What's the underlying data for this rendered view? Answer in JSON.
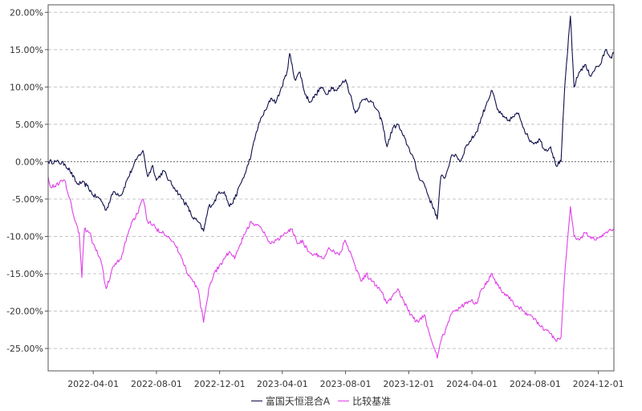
{
  "chart_data": {
    "type": "line",
    "title": "",
    "xlabel": "",
    "ylabel": "",
    "ylim": [
      -0.28,
      0.21
    ],
    "y_ticks": [
      "20.00%",
      "15.00%",
      "10.00%",
      "5.00%",
      "0.00%",
      "-5.00%",
      "-10.00%",
      "-15.00%",
      "-20.00%",
      "-25.00%"
    ],
    "y_tick_values": [
      0.2,
      0.15,
      0.1,
      0.05,
      0.0,
      -0.05,
      -0.1,
      -0.15,
      -0.2,
      -0.25
    ],
    "x_ticks": [
      "2022-04-01",
      "2022-08-01",
      "2022-12-01",
      "2023-04-01",
      "2023-08-01",
      "2023-12-01",
      "2024-04-01",
      "2024-08-01",
      "2024-12-01"
    ],
    "x_start": "2022-01-04",
    "x_end": "2024-12-31",
    "grid": true,
    "legend_position": "bottom",
    "series": [
      {
        "name": "富国天恒混合A",
        "color": "#0f0f4b",
        "points": [
          [
            "2022-01-04",
            0.0
          ],
          [
            "2022-01-20",
            0.0
          ],
          [
            "2022-02-05",
            -0.003
          ],
          [
            "2022-02-15",
            -0.012
          ],
          [
            "2022-03-01",
            -0.03
          ],
          [
            "2022-03-10",
            -0.028
          ],
          [
            "2022-03-20",
            -0.032
          ],
          [
            "2022-04-01",
            -0.045
          ],
          [
            "2022-04-15",
            -0.05
          ],
          [
            "2022-04-26",
            -0.065
          ],
          [
            "2022-05-10",
            -0.04
          ],
          [
            "2022-05-25",
            -0.045
          ],
          [
            "2022-06-05",
            -0.025
          ],
          [
            "2022-06-15",
            -0.01
          ],
          [
            "2022-06-25",
            0.005
          ],
          [
            "2022-07-06",
            0.015
          ],
          [
            "2022-07-15",
            -0.02
          ],
          [
            "2022-07-25",
            -0.005
          ],
          [
            "2022-08-01",
            -0.025
          ],
          [
            "2022-08-15",
            -0.012
          ],
          [
            "2022-08-25",
            -0.025
          ],
          [
            "2022-09-05",
            -0.035
          ],
          [
            "2022-09-20",
            -0.05
          ],
          [
            "2022-09-30",
            -0.06
          ],
          [
            "2022-10-10",
            -0.075
          ],
          [
            "2022-10-20",
            -0.08
          ],
          [
            "2022-10-31",
            -0.093
          ],
          [
            "2022-11-10",
            -0.06
          ],
          [
            "2022-11-20",
            -0.055
          ],
          [
            "2022-11-30",
            -0.04
          ],
          [
            "2022-12-10",
            -0.04
          ],
          [
            "2022-12-20",
            -0.06
          ],
          [
            "2022-12-30",
            -0.05
          ],
          [
            "2023-01-10",
            -0.03
          ],
          [
            "2023-01-20",
            -0.015
          ],
          [
            "2023-01-31",
            0.01
          ],
          [
            "2023-02-10",
            0.04
          ],
          [
            "2023-02-20",
            0.06
          ],
          [
            "2023-03-01",
            0.07
          ],
          [
            "2023-03-10",
            0.085
          ],
          [
            "2023-03-20",
            0.08
          ],
          [
            "2023-03-31",
            0.1
          ],
          [
            "2023-04-10",
            0.12
          ],
          [
            "2023-04-15",
            0.145
          ],
          [
            "2023-04-25",
            0.11
          ],
          [
            "2023-05-05",
            0.12
          ],
          [
            "2023-05-15",
            0.09
          ],
          [
            "2023-05-25",
            0.08
          ],
          [
            "2023-06-05",
            0.09
          ],
          [
            "2023-06-15",
            0.1
          ],
          [
            "2023-06-25",
            0.09
          ],
          [
            "2023-07-05",
            0.1
          ],
          [
            "2023-07-15",
            0.095
          ],
          [
            "2023-07-25",
            0.105
          ],
          [
            "2023-08-01",
            0.11
          ],
          [
            "2023-08-10",
            0.09
          ],
          [
            "2023-08-20",
            0.065
          ],
          [
            "2023-08-31",
            0.08
          ],
          [
            "2023-09-10",
            0.085
          ],
          [
            "2023-09-20",
            0.08
          ],
          [
            "2023-09-30",
            0.07
          ],
          [
            "2023-10-10",
            0.055
          ],
          [
            "2023-10-20",
            0.02
          ],
          [
            "2023-10-31",
            0.045
          ],
          [
            "2023-11-10",
            0.05
          ],
          [
            "2023-11-20",
            0.035
          ],
          [
            "2023-11-30",
            0.02
          ],
          [
            "2023-12-10",
            0.005
          ],
          [
            "2023-12-20",
            -0.02
          ],
          [
            "2023-12-31",
            -0.03
          ],
          [
            "2024-01-10",
            -0.05
          ],
          [
            "2024-01-20",
            -0.065
          ],
          [
            "2024-01-25",
            -0.077
          ],
          [
            "2024-02-01",
            -0.02
          ],
          [
            "2024-02-10",
            -0.02
          ],
          [
            "2024-02-20",
            0.005
          ],
          [
            "2024-02-29",
            0.01
          ],
          [
            "2024-03-10",
            0.0
          ],
          [
            "2024-03-20",
            0.02
          ],
          [
            "2024-03-31",
            0.03
          ],
          [
            "2024-04-10",
            0.04
          ],
          [
            "2024-04-20",
            0.06
          ],
          [
            "2024-04-30",
            0.08
          ],
          [
            "2024-05-10",
            0.095
          ],
          [
            "2024-05-20",
            0.07
          ],
          [
            "2024-05-31",
            0.06
          ],
          [
            "2024-06-10",
            0.055
          ],
          [
            "2024-06-20",
            0.06
          ],
          [
            "2024-06-30",
            0.065
          ],
          [
            "2024-07-10",
            0.045
          ],
          [
            "2024-07-20",
            0.03
          ],
          [
            "2024-07-31",
            0.025
          ],
          [
            "2024-08-10",
            0.03
          ],
          [
            "2024-08-20",
            0.015
          ],
          [
            "2024-08-31",
            0.02
          ],
          [
            "2024-09-10",
            -0.005
          ],
          [
            "2024-09-20",
            0.0
          ],
          [
            "2024-09-27",
            0.1
          ],
          [
            "2024-10-08",
            0.195
          ],
          [
            "2024-10-15",
            0.1
          ],
          [
            "2024-10-25",
            0.12
          ],
          [
            "2024-11-05",
            0.13
          ],
          [
            "2024-11-15",
            0.115
          ],
          [
            "2024-11-25",
            0.125
          ],
          [
            "2024-12-05",
            0.13
          ],
          [
            "2024-12-15",
            0.15
          ],
          [
            "2024-12-25",
            0.14
          ],
          [
            "2024-12-31",
            0.145
          ]
        ]
      },
      {
        "name": "比较基准",
        "color": "#e040e8",
        "points": [
          [
            "2022-01-04",
            -0.02
          ],
          [
            "2022-01-10",
            -0.035
          ],
          [
            "2022-01-20",
            -0.03
          ],
          [
            "2022-02-05",
            -0.025
          ],
          [
            "2022-02-15",
            -0.05
          ],
          [
            "2022-02-25",
            -0.08
          ],
          [
            "2022-03-05",
            -0.095
          ],
          [
            "2022-03-10",
            -0.155
          ],
          [
            "2022-03-15",
            -0.09
          ],
          [
            "2022-03-25",
            -0.095
          ],
          [
            "2022-04-01",
            -0.11
          ],
          [
            "2022-04-15",
            -0.13
          ],
          [
            "2022-04-26",
            -0.17
          ],
          [
            "2022-05-10",
            -0.14
          ],
          [
            "2022-05-25",
            -0.13
          ],
          [
            "2022-06-05",
            -0.1
          ],
          [
            "2022-06-15",
            -0.08
          ],
          [
            "2022-06-25",
            -0.07
          ],
          [
            "2022-07-06",
            -0.05
          ],
          [
            "2022-07-15",
            -0.08
          ],
          [
            "2022-07-25",
            -0.085
          ],
          [
            "2022-08-01",
            -0.09
          ],
          [
            "2022-08-15",
            -0.095
          ],
          [
            "2022-08-25",
            -0.1
          ],
          [
            "2022-09-05",
            -0.11
          ],
          [
            "2022-09-20",
            -0.13
          ],
          [
            "2022-09-30",
            -0.15
          ],
          [
            "2022-10-10",
            -0.16
          ],
          [
            "2022-10-20",
            -0.17
          ],
          [
            "2022-10-31",
            -0.215
          ],
          [
            "2022-11-10",
            -0.17
          ],
          [
            "2022-11-20",
            -0.15
          ],
          [
            "2022-11-30",
            -0.14
          ],
          [
            "2022-12-10",
            -0.13
          ],
          [
            "2022-12-20",
            -0.12
          ],
          [
            "2022-12-30",
            -0.13
          ],
          [
            "2023-01-10",
            -0.11
          ],
          [
            "2023-01-20",
            -0.095
          ],
          [
            "2023-01-31",
            -0.08
          ],
          [
            "2023-02-10",
            -0.085
          ],
          [
            "2023-02-20",
            -0.09
          ],
          [
            "2023-03-01",
            -0.1
          ],
          [
            "2023-03-10",
            -0.11
          ],
          [
            "2023-03-20",
            -0.105
          ],
          [
            "2023-03-31",
            -0.1
          ],
          [
            "2023-04-10",
            -0.095
          ],
          [
            "2023-04-20",
            -0.09
          ],
          [
            "2023-04-30",
            -0.11
          ],
          [
            "2023-05-10",
            -0.105
          ],
          [
            "2023-05-20",
            -0.12
          ],
          [
            "2023-05-31",
            -0.125
          ],
          [
            "2023-06-10",
            -0.125
          ],
          [
            "2023-06-20",
            -0.13
          ],
          [
            "2023-06-30",
            -0.115
          ],
          [
            "2023-07-10",
            -0.12
          ],
          [
            "2023-07-20",
            -0.125
          ],
          [
            "2023-07-31",
            -0.105
          ],
          [
            "2023-08-10",
            -0.12
          ],
          [
            "2023-08-20",
            -0.14
          ],
          [
            "2023-08-31",
            -0.16
          ],
          [
            "2023-09-10",
            -0.15
          ],
          [
            "2023-09-20",
            -0.16
          ],
          [
            "2023-09-30",
            -0.165
          ],
          [
            "2023-10-10",
            -0.175
          ],
          [
            "2023-10-20",
            -0.19
          ],
          [
            "2023-10-31",
            -0.18
          ],
          [
            "2023-11-10",
            -0.17
          ],
          [
            "2023-11-20",
            -0.185
          ],
          [
            "2023-11-30",
            -0.2
          ],
          [
            "2023-12-10",
            -0.21
          ],
          [
            "2023-12-20",
            -0.215
          ],
          [
            "2023-12-31",
            -0.205
          ],
          [
            "2024-01-10",
            -0.23
          ],
          [
            "2024-01-20",
            -0.25
          ],
          [
            "2024-01-25",
            -0.263
          ],
          [
            "2024-02-01",
            -0.24
          ],
          [
            "2024-02-10",
            -0.225
          ],
          [
            "2024-02-20",
            -0.205
          ],
          [
            "2024-02-29",
            -0.2
          ],
          [
            "2024-03-10",
            -0.195
          ],
          [
            "2024-03-20",
            -0.19
          ],
          [
            "2024-03-31",
            -0.185
          ],
          [
            "2024-04-10",
            -0.19
          ],
          [
            "2024-04-20",
            -0.17
          ],
          [
            "2024-04-30",
            -0.16
          ],
          [
            "2024-05-10",
            -0.15
          ],
          [
            "2024-05-20",
            -0.165
          ],
          [
            "2024-05-31",
            -0.175
          ],
          [
            "2024-06-10",
            -0.18
          ],
          [
            "2024-06-20",
            -0.19
          ],
          [
            "2024-06-30",
            -0.195
          ],
          [
            "2024-07-10",
            -0.2
          ],
          [
            "2024-07-20",
            -0.205
          ],
          [
            "2024-07-31",
            -0.21
          ],
          [
            "2024-08-10",
            -0.22
          ],
          [
            "2024-08-20",
            -0.225
          ],
          [
            "2024-08-31",
            -0.23
          ],
          [
            "2024-09-10",
            -0.24
          ],
          [
            "2024-09-20",
            -0.235
          ],
          [
            "2024-09-27",
            -0.15
          ],
          [
            "2024-10-08",
            -0.06
          ],
          [
            "2024-10-15",
            -0.1
          ],
          [
            "2024-10-25",
            -0.105
          ],
          [
            "2024-11-05",
            -0.095
          ],
          [
            "2024-11-15",
            -0.1
          ],
          [
            "2024-11-25",
            -0.105
          ],
          [
            "2024-12-05",
            -0.1
          ],
          [
            "2024-12-15",
            -0.095
          ],
          [
            "2024-12-25",
            -0.092
          ],
          [
            "2024-12-31",
            -0.09
          ]
        ]
      }
    ]
  }
}
